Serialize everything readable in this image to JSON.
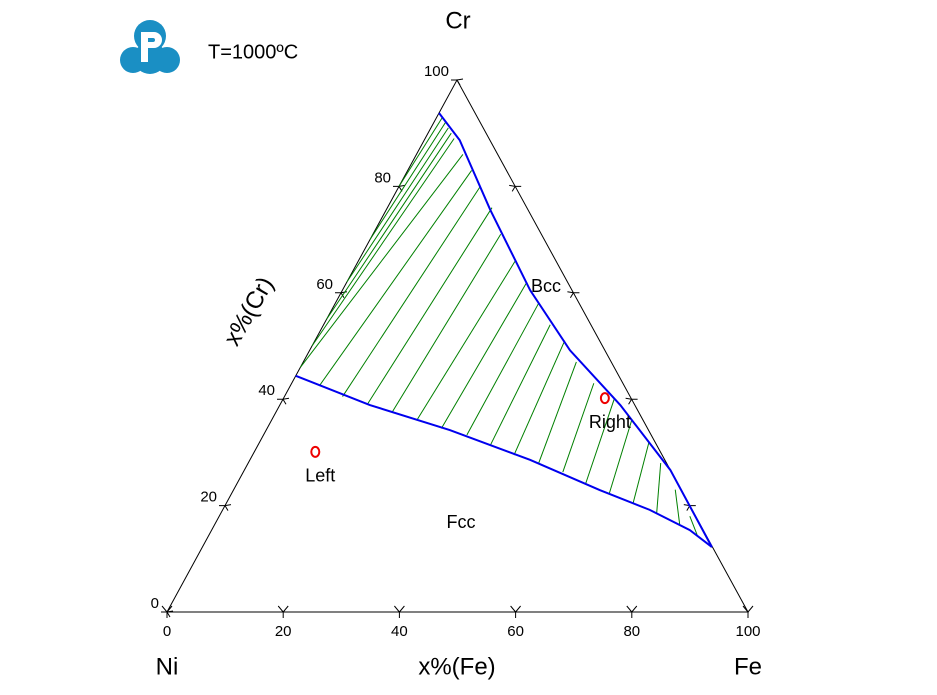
{
  "chart_data": {
    "type": "ternary",
    "title": "T=1000ºC",
    "vertices": [
      "Ni",
      "Fe",
      "Cr"
    ],
    "xlabel": "x%(Fe)",
    "ylabel": "x%(Cr)",
    "xticks": [
      0,
      20,
      40,
      60,
      80,
      100
    ],
    "yticks": [
      0,
      20,
      40,
      60,
      80,
      100
    ],
    "right_ticks": [
      20,
      40,
      60,
      80
    ],
    "phase_boundaries": [
      {
        "name": "Bcc",
        "color": "#0000ee",
        "fe": [
          0,
          6.1,
          17.9,
          32.3,
          44.8,
          58.6,
          73.3,
          87.7
        ],
        "cr": [
          93.8,
          88.7,
          75.6,
          60.5,
          49.2,
          38.9,
          26.7,
          12.2
        ]
      },
      {
        "name": "Fcc",
        "color": "#0000ee",
        "fe": [
          0,
          15.5,
          31.6,
          48.2,
          63.1,
          73.5,
          82.3,
          87.7
        ],
        "cr": [
          44.4,
          38.9,
          34.2,
          28.6,
          22.9,
          19.2,
          15.4,
          12.2
        ]
      }
    ],
    "tie_lines": {
      "color": "#008000",
      "fcc_fe": [
        0,
        0,
        0,
        0,
        0,
        0,
        5,
        10,
        15,
        20,
        25,
        30,
        35,
        40,
        45,
        50,
        55,
        60,
        65,
        70,
        75,
        80,
        84
      ],
      "fcc_cr": [
        46,
        50,
        55,
        62,
        70,
        80,
        42.5,
        40.5,
        39,
        37.5,
        36,
        34.5,
        33.3,
        31.5,
        29.5,
        28,
        26.3,
        24.2,
        22.3,
        20.5,
        18.6,
        16.5,
        14.5
      ],
      "bcc_fe": [
        8,
        5,
        4,
        3,
        2,
        1,
        11,
        14,
        18,
        22,
        27,
        31,
        35,
        39,
        43,
        47,
        52,
        57,
        62,
        67,
        71,
        76,
        81
      ],
      "bcc_cr": [
        86,
        89,
        90,
        91,
        92,
        93,
        83,
        80,
        76,
        71,
        66,
        62,
        58,
        54,
        51,
        47,
        43,
        40,
        36,
        32,
        28,
        23,
        18
      ]
    },
    "points": [
      {
        "name": "Left",
        "fe": 10.5,
        "cr": 30.1,
        "color": "#ee0000"
      },
      {
        "name": "Right",
        "fe": 55.3,
        "cr": 40.2,
        "color": "#ee0000"
      }
    ]
  }
}
